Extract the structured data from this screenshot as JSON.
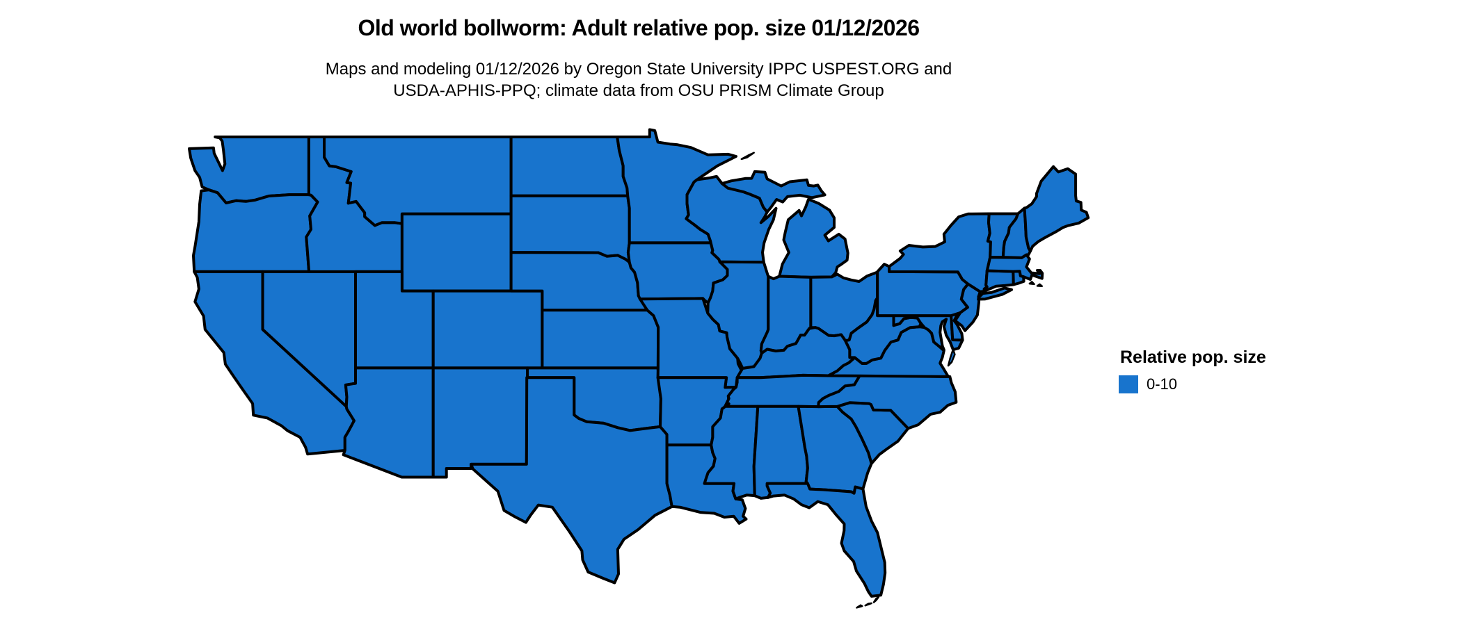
{
  "figure": {
    "title": "Old world bollworm: Adult relative pop. size 01/12/2026",
    "subtitle_line1": "Maps and modeling 01/12/2026 by Oregon State University IPPC USPEST.ORG and",
    "subtitle_line2": "USDA-APHIS-PPQ; climate data from OSU PRISM Climate Group"
  },
  "legend": {
    "title": "Relative pop. size",
    "items": [
      {
        "label": "0-10",
        "color": "#1874CD"
      }
    ]
  },
  "map": {
    "type": "choropleth",
    "region": "conterminous United States",
    "fill_color": "#1874CD",
    "border_color": "#000000",
    "background_color": "#FFFFFF",
    "all_states_value": "0-10"
  }
}
